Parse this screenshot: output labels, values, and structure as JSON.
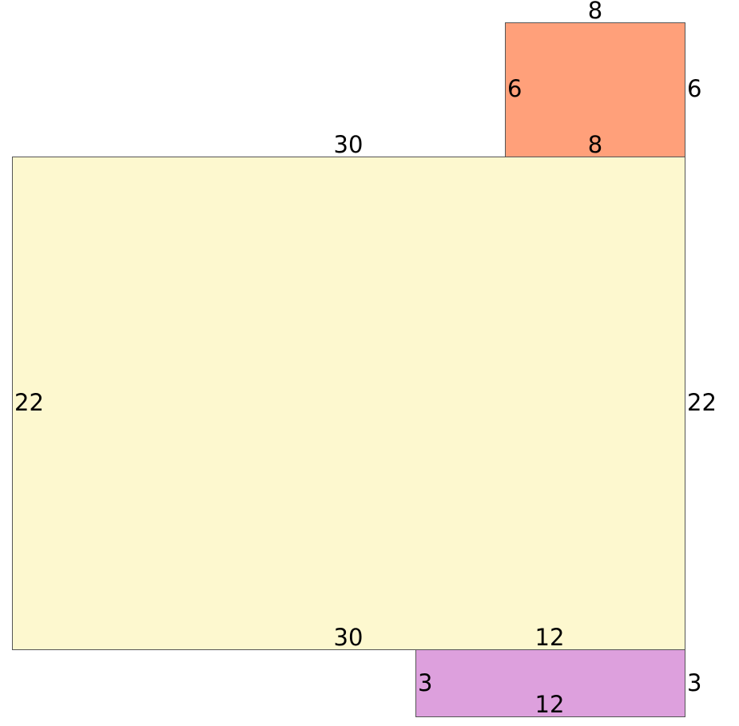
{
  "shapes": {
    "main": {
      "color": "#FDF8CF",
      "top": "30",
      "bottom": "30",
      "left": "22",
      "right": "22"
    },
    "top_rect": {
      "color": "#FFA07A",
      "top": "8",
      "bottom": "8",
      "left": "6",
      "right": "6"
    },
    "bottom_rect": {
      "color": "#DDA0DD",
      "top": "12",
      "bottom": "12",
      "left": "3",
      "right": "3"
    }
  }
}
